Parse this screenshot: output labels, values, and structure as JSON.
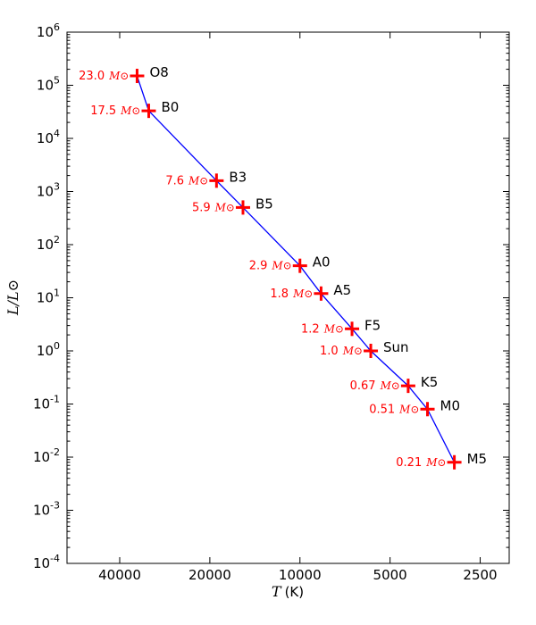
{
  "chart_data": {
    "type": "scatter",
    "title": "",
    "xlabel": "T",
    "xlabel_unit": "(K)",
    "ylabel": "L/L⊙",
    "x_scale": "log-reversed",
    "y_scale": "log",
    "xlim": [
      60000,
      2000
    ],
    "ylim_exponents": [
      -4,
      6
    ],
    "x_ticks": [
      {
        "value": 40000,
        "label": "40000"
      },
      {
        "value": 20000,
        "label": "20000"
      },
      {
        "value": 10000,
        "label": "10000"
      },
      {
        "value": 5000,
        "label": "5000"
      },
      {
        "value": 2500,
        "label": "2500"
      }
    ],
    "y_ticks": [
      {
        "exp": 6,
        "base": "10",
        "sup": "6"
      },
      {
        "exp": 5,
        "base": "10",
        "sup": "5"
      },
      {
        "exp": 4,
        "base": "10",
        "sup": "4"
      },
      {
        "exp": 3,
        "base": "10",
        "sup": "3"
      },
      {
        "exp": 2,
        "base": "10",
        "sup": "2"
      },
      {
        "exp": 1,
        "base": "10",
        "sup": "1"
      },
      {
        "exp": 0,
        "base": "10",
        "sup": "0"
      },
      {
        "exp": -1,
        "base": "10",
        "sup": "-1"
      },
      {
        "exp": -2,
        "base": "10",
        "sup": "-2"
      },
      {
        "exp": -3,
        "base": "10",
        "sup": "-3"
      },
      {
        "exp": -4,
        "base": "10",
        "sup": "-4"
      }
    ],
    "mass_unit": "M⊙",
    "series": [
      {
        "line_color": "#0000ff",
        "marker_color": "#ff0000",
        "points": [
          {
            "star": "O8",
            "T": 35000,
            "L": 150000,
            "mass": "23.0"
          },
          {
            "star": "B0",
            "T": 32000,
            "L": 33000,
            "mass": "17.5"
          },
          {
            "star": "B3",
            "T": 19000,
            "L": 1600,
            "mass": "7.6"
          },
          {
            "star": "B5",
            "T": 15500,
            "L": 500,
            "mass": "5.9"
          },
          {
            "star": "A0",
            "T": 10000,
            "L": 40,
            "mass": "2.9"
          },
          {
            "star": "A5",
            "T": 8500,
            "L": 12,
            "mass": "1.8"
          },
          {
            "star": "F5",
            "T": 6700,
            "L": 2.6,
            "mass": "1.2"
          },
          {
            "star": "Sun",
            "T": 5800,
            "L": 1.0,
            "mass": "1.0"
          },
          {
            "star": "K5",
            "T": 4350,
            "L": 0.22,
            "mass": "0.67"
          },
          {
            "star": "M0",
            "T": 3750,
            "L": 0.08,
            "mass": "0.51"
          },
          {
            "star": "M5",
            "T": 3050,
            "L": 0.008,
            "mass": "0.21"
          }
        ]
      }
    ],
    "grid": false,
    "legend": "none"
  }
}
